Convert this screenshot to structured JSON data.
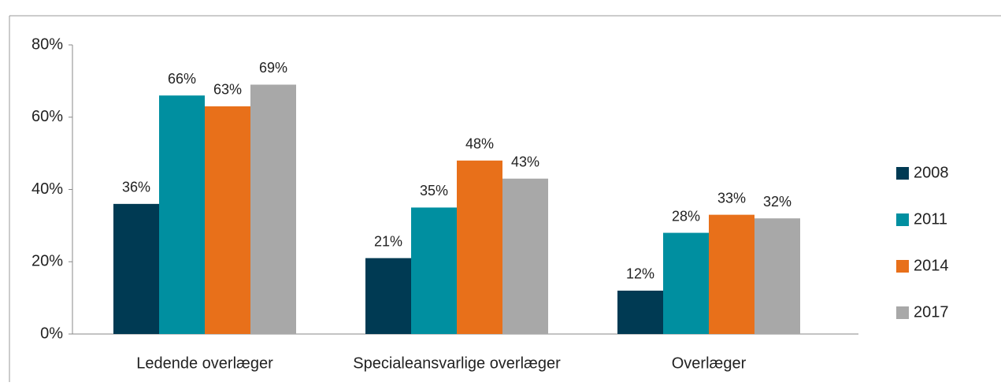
{
  "chart_data": {
    "type": "bar",
    "categories": [
      "Ledende overlæger",
      "Specialeansvarlige overlæger",
      "Overlæger"
    ],
    "series": [
      {
        "name": "2008",
        "color": "#003a53",
        "values": [
          36,
          21,
          12
        ],
        "value_labels": [
          "36%",
          "21%",
          "12%"
        ]
      },
      {
        "name": "2011",
        "color": "#008fa0",
        "values": [
          66,
          35,
          28
        ],
        "value_labels": [
          "66%",
          "35%",
          "28%"
        ]
      },
      {
        "name": "2014",
        "color": "#e8701a",
        "values": [
          63,
          48,
          33
        ],
        "value_labels": [
          "63%",
          "48%",
          "33%"
        ]
      },
      {
        "name": "2017",
        "color": "#a8a8a8",
        "values": [
          69,
          43,
          32
        ],
        "value_labels": [
          "69%",
          "43%",
          "32%"
        ]
      }
    ],
    "ylim": [
      0,
      80
    ],
    "yticks": [
      {
        "value": 0,
        "label": "0%"
      },
      {
        "value": 20,
        "label": "20%"
      },
      {
        "value": 40,
        "label": "40%"
      },
      {
        "value": 60,
        "label": "60%"
      },
      {
        "value": 80,
        "label": "80%"
      }
    ],
    "grid": false,
    "legend": "right"
  }
}
